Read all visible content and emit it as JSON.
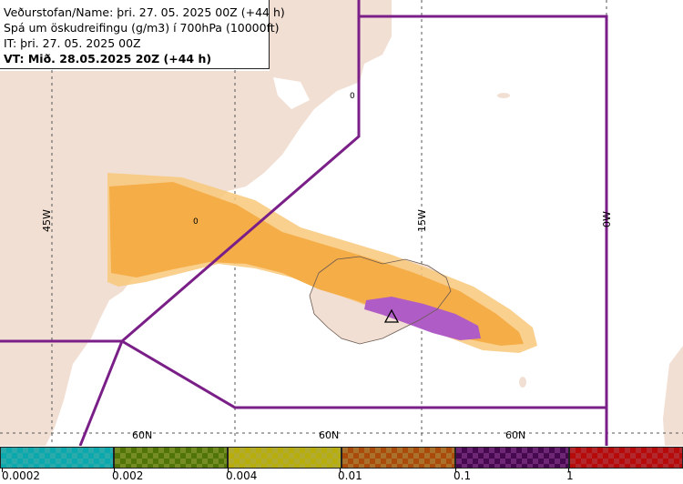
{
  "header": {
    "line1": "Veðurstofan/Name: þri. 27. 05. 2025 00Z (+44 h)",
    "line2": "Spá um öskudreifingu (g/m3) í 700hPa (10000ft)",
    "line3": "IT: þri. 27. 05. 2025 00Z",
    "line4": "VT: Mið. 28.05.2025 20Z (+44 h)"
  },
  "map": {
    "lon_labels": [
      "45W",
      "15W",
      "0W"
    ],
    "lat_labels": [
      "60N",
      "60N",
      "60N"
    ],
    "marker_label": "0",
    "colors": {
      "land": "#f2dfd3",
      "sea": "#ffffff",
      "boundary": "#7b1f88",
      "ash_light": "#f8c87a",
      "ash_mid": "#f5ad48",
      "ash_high": "#b05cc6"
    }
  },
  "legend": {
    "colors": [
      "#35cfd2",
      "#8fac2c",
      "#d8d23a",
      "#d08a36",
      "#86308e",
      "#d83236"
    ],
    "ticks": [
      "0.0002",
      "0.002",
      "0.004",
      "0.01",
      "0.1",
      "1"
    ]
  }
}
